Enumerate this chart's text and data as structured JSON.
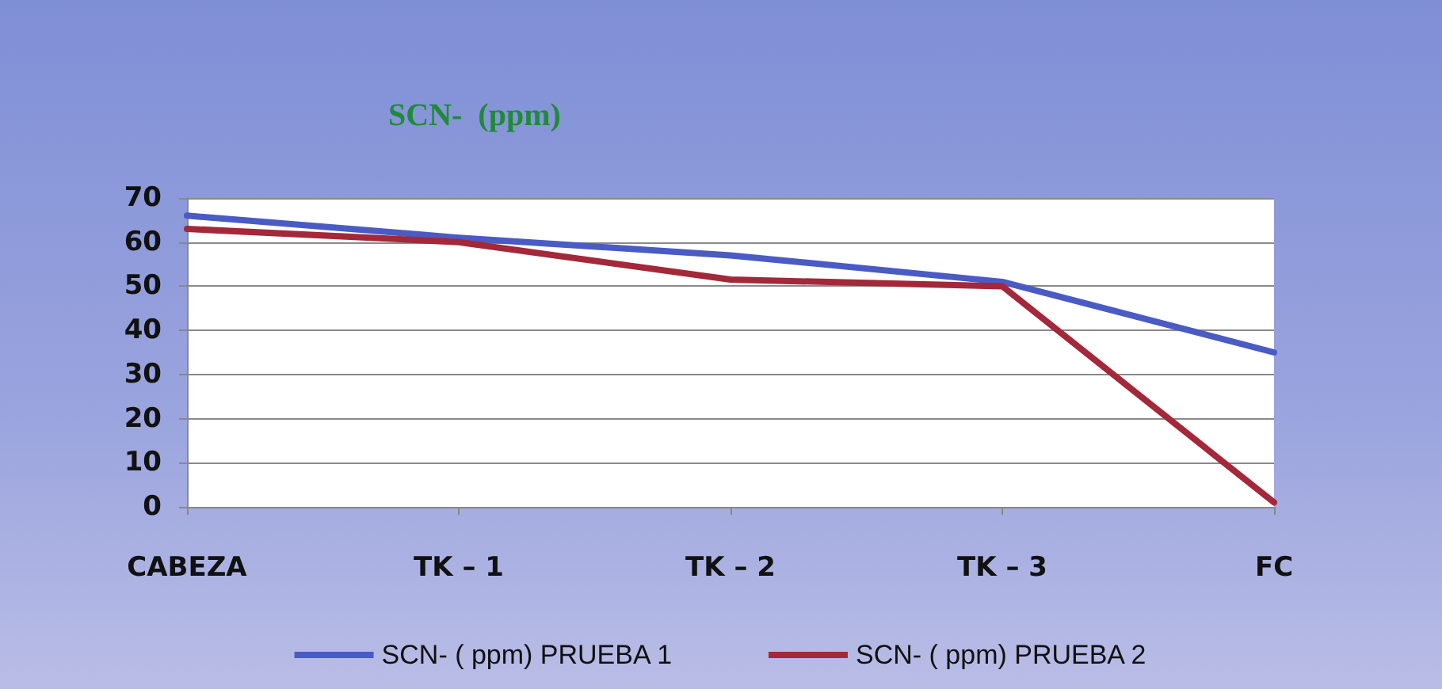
{
  "chart_data": {
    "type": "line",
    "title": "SCN-  (ppm)",
    "categories": [
      "CABEZA",
      "TK – 1",
      "TK – 2",
      "TK – 3",
      "FC"
    ],
    "series": [
      {
        "name": "SCN- ( ppm) PRUEBA 1",
        "color": "#4a5bc4",
        "values": [
          66,
          61,
          57,
          51,
          35
        ]
      },
      {
        "name": "SCN- ( ppm) PRUEBA 2",
        "color": "#a3283a",
        "values": [
          63,
          60,
          51.5,
          50,
          1
        ]
      }
    ],
    "ylim": [
      0,
      70
    ],
    "yticks": [
      0,
      10,
      20,
      30,
      40,
      50,
      60,
      70
    ],
    "grid": "y",
    "legend": "bottom",
    "marker": "none",
    "line_style": "solid"
  }
}
